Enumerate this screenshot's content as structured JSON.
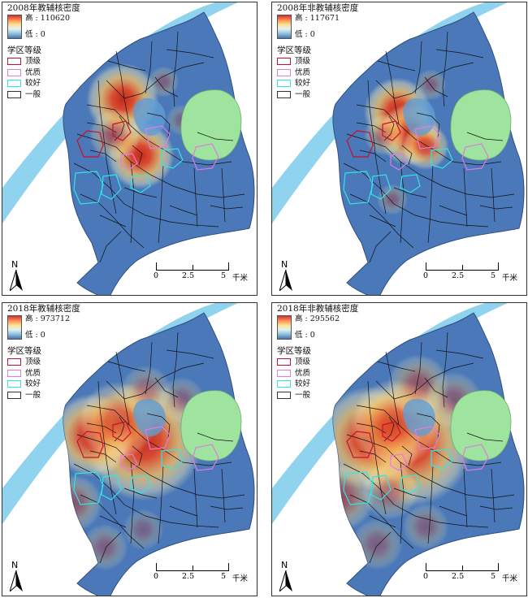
{
  "panels": [
    {
      "title": "2008年教辅核密度",
      "high": "高 : 110620",
      "low": "低 : 0",
      "hot": [
        [
          0.47,
          0.33,
          28,
          1.0
        ],
        [
          0.54,
          0.52,
          26,
          1.0
        ],
        [
          0.44,
          0.45,
          20,
          0.55
        ],
        [
          0.63,
          0.27,
          12,
          0.35
        ],
        [
          0.7,
          0.4,
          12,
          0.3
        ]
      ]
    },
    {
      "title": "2008年非教辅核密度",
      "high": "高 : 117671",
      "low": "低 : 0",
      "hot": [
        [
          0.49,
          0.37,
          26,
          1.0
        ],
        [
          0.54,
          0.45,
          24,
          0.95
        ],
        [
          0.6,
          0.49,
          18,
          0.8
        ],
        [
          0.44,
          0.45,
          16,
          0.5
        ],
        [
          0.62,
          0.28,
          12,
          0.35
        ],
        [
          0.47,
          0.67,
          12,
          0.35
        ]
      ]
    },
    {
      "title": "2018年教辅核密度",
      "high": "高 : 973712",
      "low": "低 : 0",
      "hot": [
        [
          0.55,
          0.47,
          46,
          1.0
        ],
        [
          0.35,
          0.45,
          32,
          0.95
        ],
        [
          0.45,
          0.4,
          30,
          0.7
        ],
        [
          0.28,
          0.68,
          22,
          0.45
        ],
        [
          0.56,
          0.3,
          20,
          0.4
        ],
        [
          0.7,
          0.33,
          18,
          0.35
        ],
        [
          0.4,
          0.83,
          18,
          0.35
        ],
        [
          0.55,
          0.77,
          16,
          0.3
        ]
      ]
    },
    {
      "title": "2018年非教辅核密度",
      "high": "高 : 295562",
      "low": "低 : 0",
      "hot": [
        [
          0.54,
          0.48,
          48,
          1.0
        ],
        [
          0.38,
          0.46,
          40,
          0.95
        ],
        [
          0.48,
          0.41,
          34,
          0.75
        ],
        [
          0.27,
          0.66,
          26,
          0.55
        ],
        [
          0.57,
          0.28,
          24,
          0.5
        ],
        [
          0.71,
          0.33,
          22,
          0.4
        ],
        [
          0.46,
          0.64,
          22,
          0.45
        ],
        [
          0.41,
          0.82,
          20,
          0.35
        ],
        [
          0.6,
          0.76,
          18,
          0.35
        ]
      ]
    }
  ],
  "legend": {
    "section_title": "学区等级",
    "items": [
      {
        "label": "顶级",
        "color": "#c8102e"
      },
      {
        "label": "优质",
        "color": "#e07be0"
      },
      {
        "label": "较好",
        "color": "#2ee6e6"
      },
      {
        "label": "一般",
        "color": "#333333"
      }
    ]
  },
  "north_label": "N",
  "scale": {
    "t0": "0",
    "t1": "2.5",
    "t2": "5",
    "unit": "千米"
  },
  "colors": {
    "land": "#4a78b8",
    "river": "#8fd3ef",
    "park": "#9ee39e",
    "boundary": "#111111"
  }
}
